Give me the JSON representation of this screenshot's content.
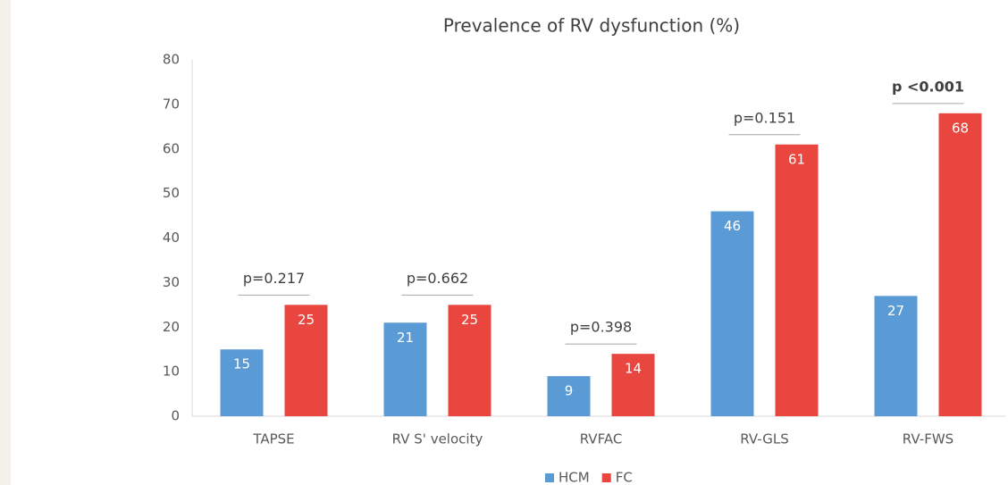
{
  "chart_data": {
    "type": "bar",
    "title": "Prevalence of RV dysfunction (%)",
    "categories": [
      "TAPSE",
      "RV S' velocity",
      "RVFAC",
      "RV-GLS",
      "RV-FWS"
    ],
    "series": [
      {
        "name": "HCM",
        "color": "#5b9bd5",
        "values": [
          15,
          21,
          9,
          46,
          27
        ]
      },
      {
        "name": "FC",
        "color": "#e8463f",
        "values": [
          25,
          25,
          14,
          61,
          68
        ]
      }
    ],
    "annotations": [
      {
        "text": "p=0.217",
        "bold": false
      },
      {
        "text": "p=0.662",
        "bold": false
      },
      {
        "text": "p=0.398",
        "bold": false
      },
      {
        "text": "p=0.151",
        "bold": false
      },
      {
        "text": "p <0.001",
        "bold": true
      }
    ],
    "ylim": [
      0,
      80
    ],
    "yticks": [
      0,
      10,
      20,
      30,
      40,
      50,
      60,
      70,
      80
    ],
    "grid": false,
    "legend": "bottom"
  }
}
